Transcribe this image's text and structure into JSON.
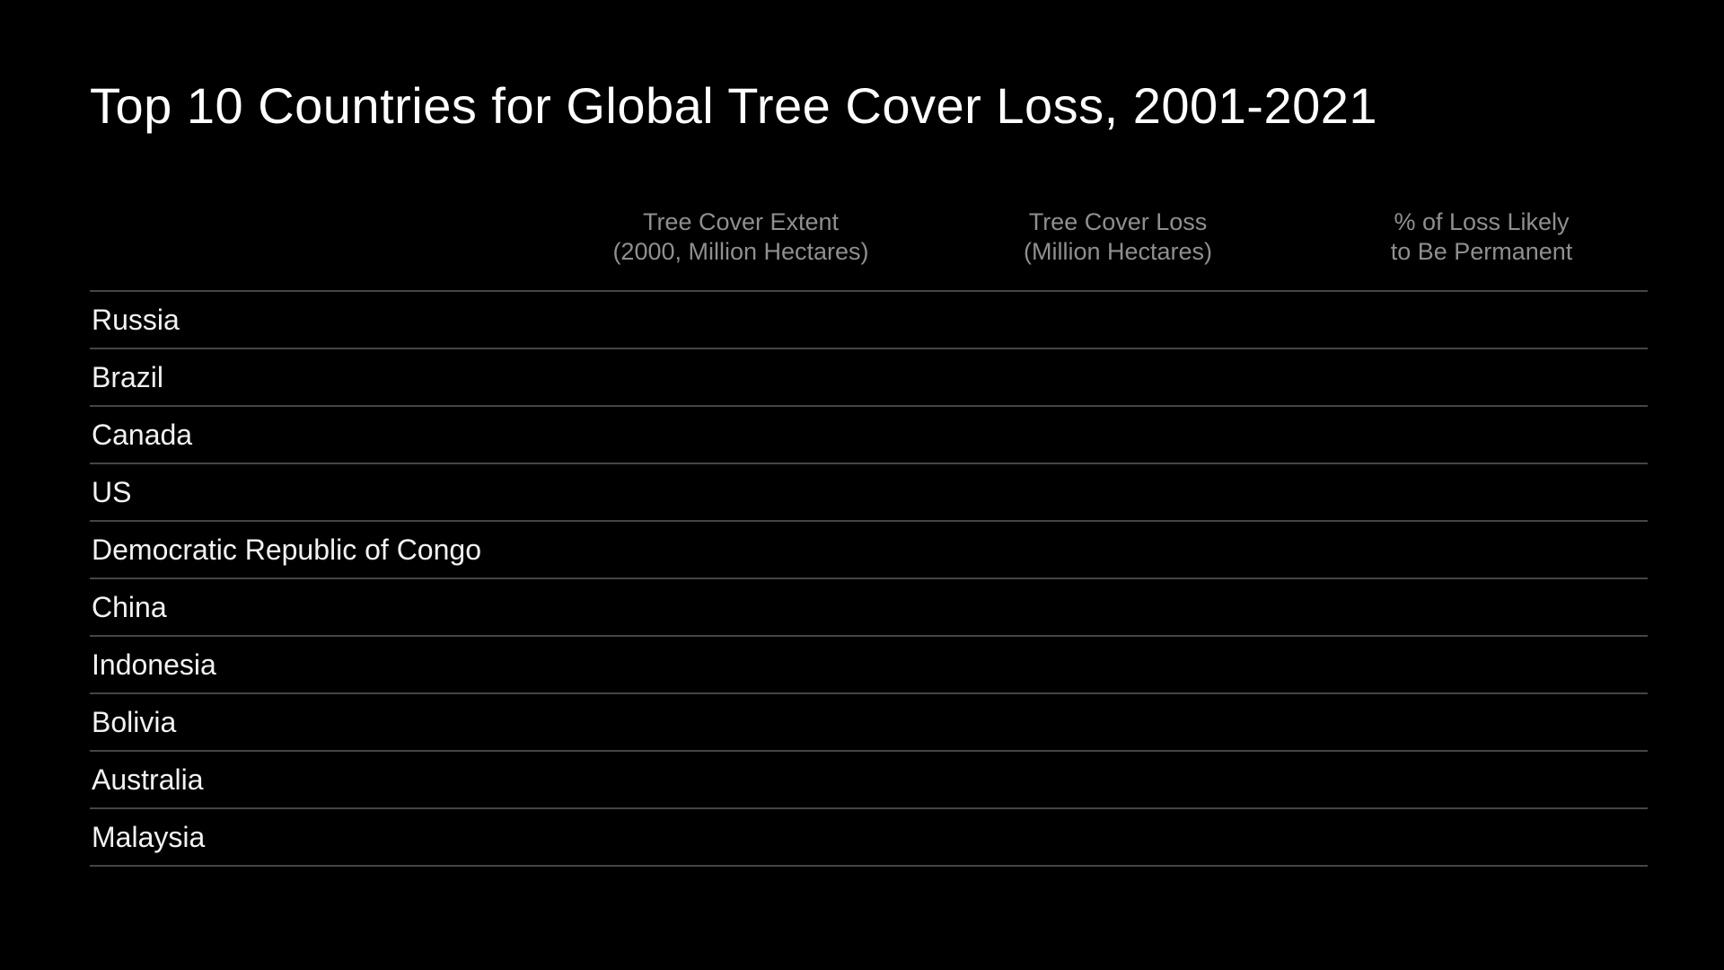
{
  "title": "Top 10 Countries for Global Tree Cover Loss, 2001-2021",
  "colors": {
    "background": "#000000",
    "title": "#ffffff",
    "header_text": "#8f8f8f",
    "row_text": "#f2f2f2",
    "divider": "#454545"
  },
  "table": {
    "columns": [
      {
        "line1": "Tree Cover Extent",
        "line2": "(2000, Million Hectares)"
      },
      {
        "line1": "Tree Cover Loss",
        "line2": "(Million Hectares)"
      },
      {
        "line1": "% of Loss Likely",
        "line2": "to Be Permanent"
      }
    ],
    "rows": [
      {
        "country": "Russia",
        "extent": "",
        "loss": "",
        "permanent": ""
      },
      {
        "country": "Brazil",
        "extent": "",
        "loss": "",
        "permanent": ""
      },
      {
        "country": "Canada",
        "extent": "",
        "loss": "",
        "permanent": ""
      },
      {
        "country": "US",
        "extent": "",
        "loss": "",
        "permanent": ""
      },
      {
        "country": "Democratic Republic of Congo",
        "extent": "",
        "loss": "",
        "permanent": ""
      },
      {
        "country": "China",
        "extent": "",
        "loss": "",
        "permanent": ""
      },
      {
        "country": "Indonesia",
        "extent": "",
        "loss": "",
        "permanent": ""
      },
      {
        "country": "Bolivia",
        "extent": "",
        "loss": "",
        "permanent": ""
      },
      {
        "country": "Australia",
        "extent": "",
        "loss": "",
        "permanent": ""
      },
      {
        "country": "Malaysia",
        "extent": "",
        "loss": "",
        "permanent": ""
      }
    ]
  },
  "chart_data": {
    "type": "table",
    "title": "Top 10 Countries for Global Tree Cover Loss, 2001-2021",
    "columns": [
      "",
      "Tree Cover Extent (2000, Million Hectares)",
      "Tree Cover Loss (Million Hectares)",
      "% of Loss Likely to Be Permanent"
    ],
    "categories": [
      "Russia",
      "Brazil",
      "Canada",
      "US",
      "Democratic Republic of Congo",
      "China",
      "Indonesia",
      "Bolivia",
      "Australia",
      "Malaysia"
    ],
    "rows": [
      [
        "Russia",
        "",
        "",
        ""
      ],
      [
        "Brazil",
        "",
        "",
        ""
      ],
      [
        "Canada",
        "",
        "",
        ""
      ],
      [
        "US",
        "",
        "",
        ""
      ],
      [
        "Democratic Republic of Congo",
        "",
        "",
        ""
      ],
      [
        "China",
        "",
        "",
        ""
      ],
      [
        "Indonesia",
        "",
        "",
        ""
      ],
      [
        "Bolivia",
        "",
        "",
        ""
      ],
      [
        "Australia",
        "",
        "",
        ""
      ],
      [
        "Malaysia",
        "",
        "",
        ""
      ]
    ]
  }
}
